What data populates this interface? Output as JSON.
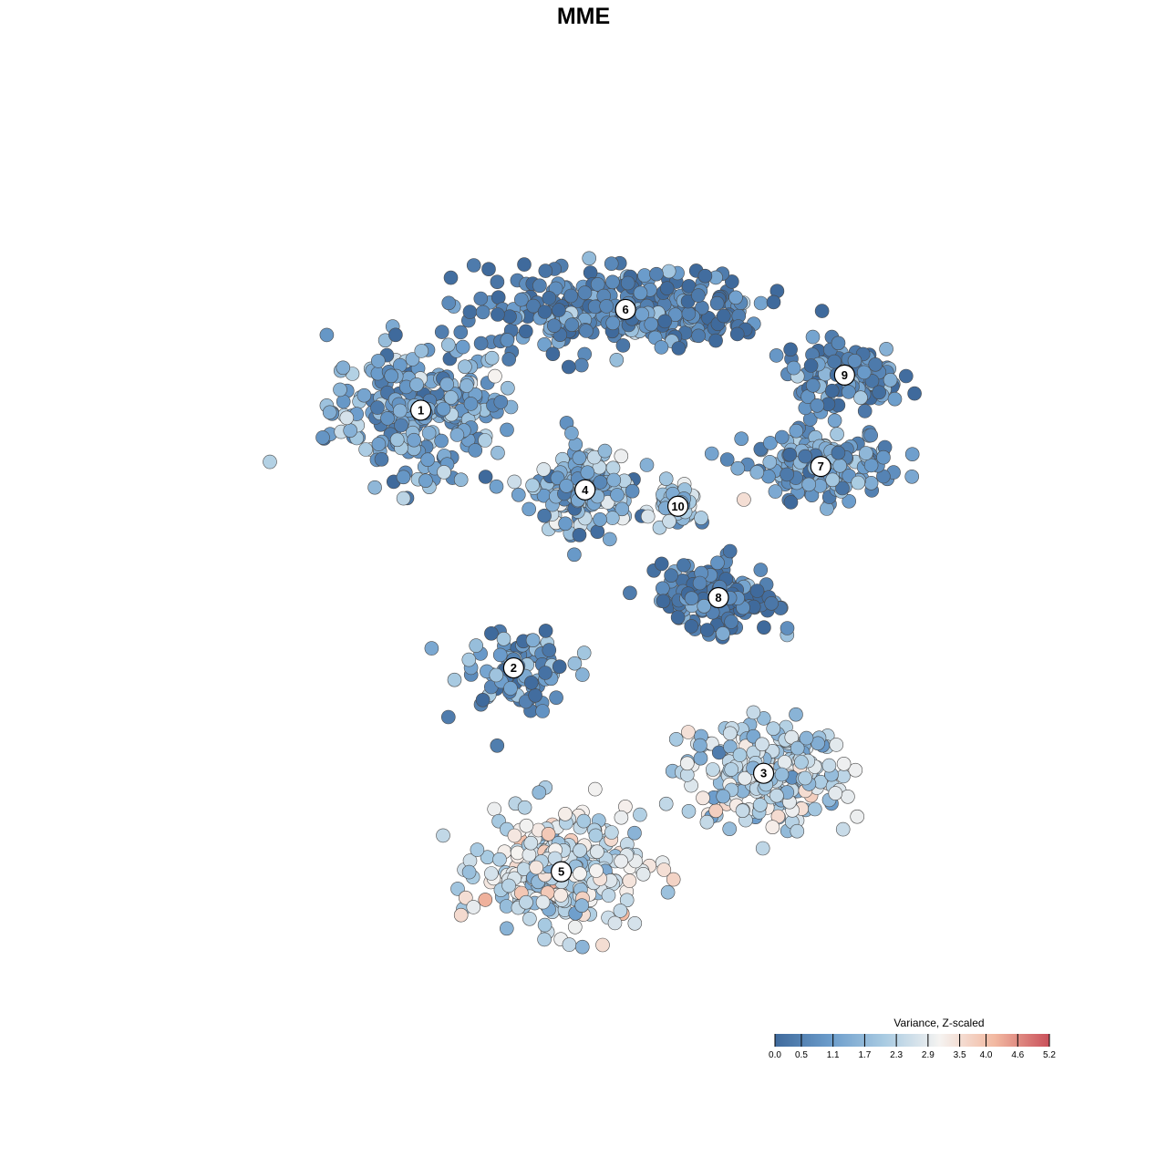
{
  "chart_data": {
    "type": "scatter",
    "title": "MME",
    "xlabel": "",
    "ylabel": "",
    "grid": false,
    "axes_visible": false,
    "color_scale": {
      "title": "Variance, Z-scaled",
      "min": 0.0,
      "max": 5.2,
      "ticks": [
        {
          "value": 0.0,
          "label": "0.0"
        },
        {
          "value": 0.5,
          "label": "0.5"
        },
        {
          "value": 1.1,
          "label": "1.1"
        },
        {
          "value": 1.7,
          "label": "1.7"
        },
        {
          "value": 2.3,
          "label": "2.3"
        },
        {
          "value": 2.9,
          "label": "2.9"
        },
        {
          "value": 3.5,
          "label": "3.5"
        },
        {
          "value": 4.0,
          "label": "4.0"
        },
        {
          "value": 4.6,
          "label": "4.6"
        },
        {
          "value": 5.2,
          "label": "5.2"
        }
      ],
      "colors": [
        "#3f6a9c",
        "#6b9ccb",
        "#a9cbe2",
        "#f5f3f1",
        "#f2b9a1",
        "#c9505a"
      ],
      "legend_position": "bottom-right"
    },
    "clusters": [
      {
        "label": "1",
        "x": -7.6,
        "y": 7.3,
        "value": 1.2
      },
      {
        "label": "2",
        "x": -3.7,
        "y": -3.7,
        "value": 1.0
      },
      {
        "label": "3",
        "x": 6.8,
        "y": -8.2,
        "value": 2.2
      },
      {
        "label": "4",
        "x": -0.7,
        "y": 3.9,
        "value": 1.5
      },
      {
        "label": "5",
        "x": -1.7,
        "y": -12.4,
        "value": 2.4
      },
      {
        "label": "6",
        "x": 1.0,
        "y": 11.6,
        "value": 0.5
      },
      {
        "label": "7",
        "x": 9.2,
        "y": 4.9,
        "value": 1.0
      },
      {
        "label": "8",
        "x": 4.9,
        "y": -0.7,
        "value": 0.4
      },
      {
        "label": "9",
        "x": 10.2,
        "y": 8.8,
        "value": 0.6
      },
      {
        "label": "10",
        "x": 3.2,
        "y": 3.2,
        "value": 1.8
      }
    ],
    "x_range": [
      -18,
      18
    ],
    "y_range": [
      -18,
      18
    ]
  }
}
